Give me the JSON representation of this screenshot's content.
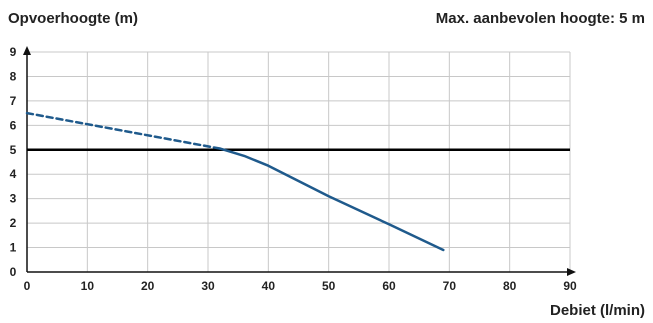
{
  "chart_data": {
    "type": "line",
    "ylabel": "Opvoerhoogte (m)",
    "xlabel": "Debiet (l/min)",
    "annotation": "Max. aanbevolen hoogte: 5 m",
    "xlim": [
      0,
      90
    ],
    "ylim": [
      0,
      9
    ],
    "x_ticks": [
      "0",
      "10",
      "20",
      "30",
      "40",
      "50",
      "60",
      "70",
      "80",
      "90"
    ],
    "y_ticks": [
      "0",
      "1",
      "2",
      "3",
      "4",
      "5",
      "6",
      "7",
      "8",
      "9"
    ],
    "grid": true,
    "reference_line": {
      "y": 5,
      "color": "#000000"
    },
    "series": [
      {
        "style": "dashed",
        "color": "#1f5a8c",
        "points": [
          [
            0,
            6.5
          ],
          [
            32,
            5.05
          ]
        ]
      },
      {
        "style": "solid",
        "color": "#1f5a8c",
        "points": [
          [
            32,
            5.05
          ],
          [
            36,
            4.75
          ],
          [
            40,
            4.35
          ],
          [
            50,
            3.1
          ],
          [
            60,
            1.95
          ],
          [
            69,
            0.9
          ]
        ]
      }
    ]
  }
}
